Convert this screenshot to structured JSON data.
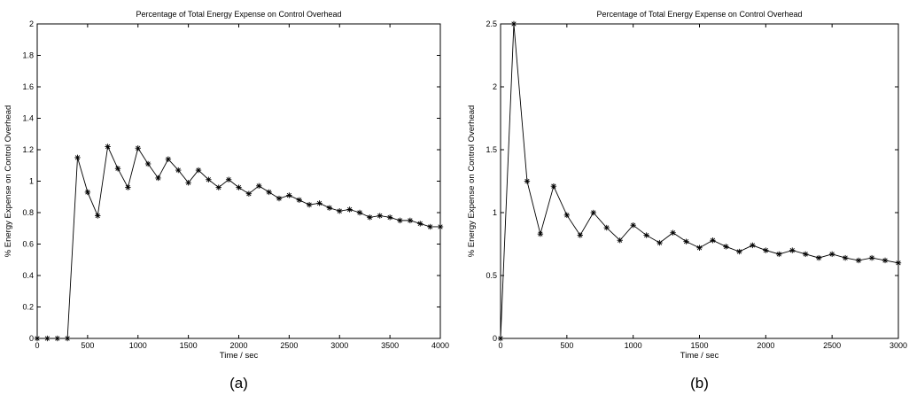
{
  "chart_data": [
    {
      "type": "line",
      "caption": "(a)",
      "title": "Percentage of Total Energy Expense on Control Overhead",
      "xlabel": "Time / sec",
      "ylabel": "% Energy Expense on Control Overhead",
      "xlim": [
        0,
        4000
      ],
      "ylim": [
        0,
        2
      ],
      "xticks": [
        0,
        500,
        1000,
        1500,
        2000,
        2500,
        3000,
        3500,
        4000
      ],
      "yticks": [
        0,
        0.2,
        0.4,
        0.6,
        0.8,
        1,
        1.2,
        1.4,
        1.6,
        1.8,
        2
      ],
      "grid": false,
      "marker": "asterisk",
      "series": [
        {
          "x": [
            0,
            100,
            200,
            300,
            400,
            500,
            600,
            700,
            800,
            900,
            1000,
            1100,
            1200,
            1300,
            1400,
            1500,
            1600,
            1700,
            1800,
            1900,
            2000,
            2100,
            2200,
            2300,
            2400,
            2500,
            2600,
            2700,
            2800,
            2900,
            3000,
            3100,
            3200,
            3300,
            3400,
            3500,
            3600,
            3700,
            3800,
            3900,
            4000
          ],
          "y": [
            0,
            0,
            0,
            0,
            1.15,
            0.93,
            0.78,
            1.22,
            1.08,
            0.96,
            1.21,
            1.11,
            1.02,
            1.14,
            1.07,
            0.99,
            1.07,
            1.01,
            0.96,
            1.01,
            0.96,
            0.92,
            0.97,
            0.93,
            0.89,
            0.91,
            0.88,
            0.85,
            0.86,
            0.83,
            0.81,
            0.82,
            0.8,
            0.77,
            0.78,
            0.77,
            0.75,
            0.75,
            0.73,
            0.71,
            0.71
          ]
        }
      ]
    },
    {
      "type": "line",
      "caption": "(b)",
      "title": "Percentage of Total Energy Expense on Control Overhead",
      "xlabel": "Time / sec",
      "ylabel": "% Energy Expense on Control Overhead",
      "xlim": [
        0,
        3000
      ],
      "ylim": [
        0,
        2.5
      ],
      "xticks": [
        0,
        500,
        1000,
        1500,
        2000,
        2500,
        3000
      ],
      "yticks": [
        0,
        0.5,
        1,
        1.5,
        2,
        2.5
      ],
      "grid": false,
      "marker": "asterisk",
      "series": [
        {
          "x": [
            0,
            100,
            200,
            300,
            400,
            500,
            600,
            700,
            800,
            900,
            1000,
            1100,
            1200,
            1300,
            1400,
            1500,
            1600,
            1700,
            1800,
            1900,
            2000,
            2100,
            2200,
            2300,
            2400,
            2500,
            2600,
            2700,
            2800,
            2900,
            3000
          ],
          "y": [
            0,
            2.5,
            1.25,
            0.83,
            1.21,
            0.98,
            0.82,
            1.0,
            0.88,
            0.78,
            0.9,
            0.82,
            0.76,
            0.84,
            0.77,
            0.72,
            0.78,
            0.73,
            0.69,
            0.74,
            0.7,
            0.67,
            0.7,
            0.67,
            0.64,
            0.67,
            0.64,
            0.62,
            0.64,
            0.62,
            0.6
          ]
        }
      ]
    }
  ]
}
